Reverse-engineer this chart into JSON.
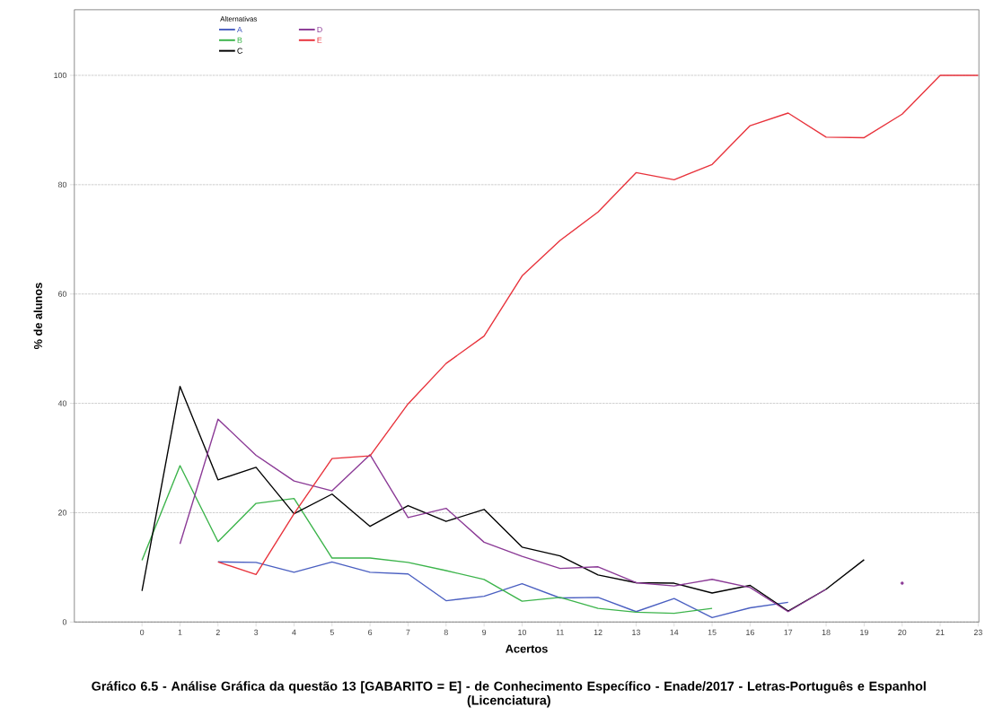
{
  "chart_data": {
    "type": "line",
    "title": "Gráfico 6.5 - Análise Gráfica da questão 13 [GABARITO = E] - de Conhecimento Específico - Enade/2017 - Letras-Português e Espanhol (Licenciatura)",
    "xlabel": "Acertos",
    "ylabel": "% de alunos",
    "legend_title": "Alternativas",
    "categories": [
      "0",
      "1",
      "2",
      "3",
      "4",
      "5",
      "6",
      "7",
      "8",
      "9",
      "10",
      "11",
      "12",
      "13",
      "14",
      "15",
      "16",
      "17",
      "18",
      "19",
      "20",
      "21",
      "23"
    ],
    "ylim": [
      0,
      112
    ],
    "yticks": [
      0,
      20,
      40,
      60,
      80,
      100
    ],
    "grid": "y",
    "legend": "top left",
    "marker": "none",
    "line_style": "solid",
    "series": [
      {
        "name": "A",
        "color": "#4a5fc1",
        "values": [
          null,
          null,
          11.0,
          10.9,
          9.1,
          11.0,
          9.1,
          8.8,
          3.9,
          4.7,
          7.0,
          4.4,
          4.5,
          1.9,
          4.3,
          0.8,
          2.6,
          3.6,
          null,
          null,
          null,
          null,
          null
        ]
      },
      {
        "name": "B",
        "color": "#3cb44b",
        "values": [
          11.3,
          28.6,
          14.7,
          21.7,
          22.6,
          11.7,
          11.7,
          10.9,
          9.4,
          7.8,
          3.8,
          4.5,
          2.5,
          1.8,
          1.6,
          2.5,
          null,
          null,
          null,
          null,
          null,
          null,
          null
        ]
      },
      {
        "name": "C",
        "color": "#000000",
        "values": [
          5.7,
          43.1,
          26.0,
          28.3,
          19.8,
          23.4,
          17.5,
          21.3,
          18.4,
          20.6,
          13.7,
          12.1,
          8.6,
          7.2,
          7.1,
          5.3,
          6.7,
          2.0,
          6.0,
          11.4,
          null,
          null,
          null
        ]
      },
      {
        "name": "D",
        "color": "#8b3a96",
        "values": [
          null,
          14.3,
          37.1,
          30.5,
          25.8,
          24.0,
          30.6,
          19.1,
          20.8,
          14.6,
          12.0,
          9.8,
          10.1,
          7.2,
          6.6,
          7.8,
          6.3,
          1.9,
          6.0,
          null,
          7.1,
          null,
          null
        ]
      },
      {
        "name": "E",
        "color": "#e8333c",
        "values": [
          null,
          null,
          11.0,
          8.7,
          19.8,
          29.9,
          30.4,
          39.9,
          47.3,
          52.3,
          63.3,
          69.8,
          75.0,
          82.2,
          80.9,
          83.7,
          90.8,
          93.1,
          88.7,
          88.6,
          92.9,
          100,
          100
        ]
      }
    ]
  }
}
